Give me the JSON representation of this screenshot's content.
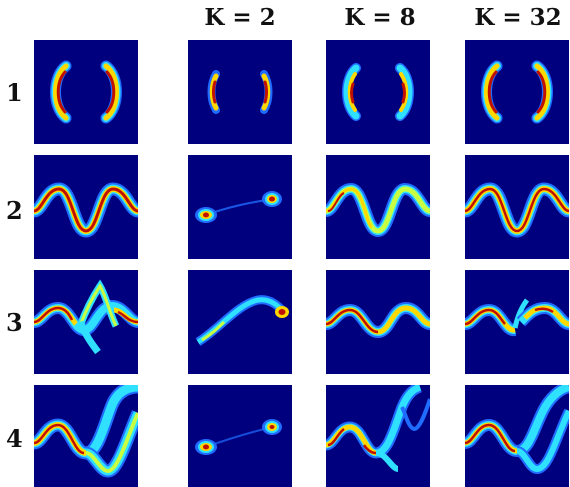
{
  "column_headers": [
    "K = 2",
    "K = 8",
    "K = 32"
  ],
  "row_labels": [
    "1",
    "2",
    "3",
    "4"
  ],
  "colormap": {
    "background": "#00007f",
    "low": "#1f6cff",
    "mid_low": "#30e0ff",
    "mid": "#c8ff40",
    "mid_high": "#ffd800",
    "high": "#e02000",
    "peak": "#8a0000"
  }
}
